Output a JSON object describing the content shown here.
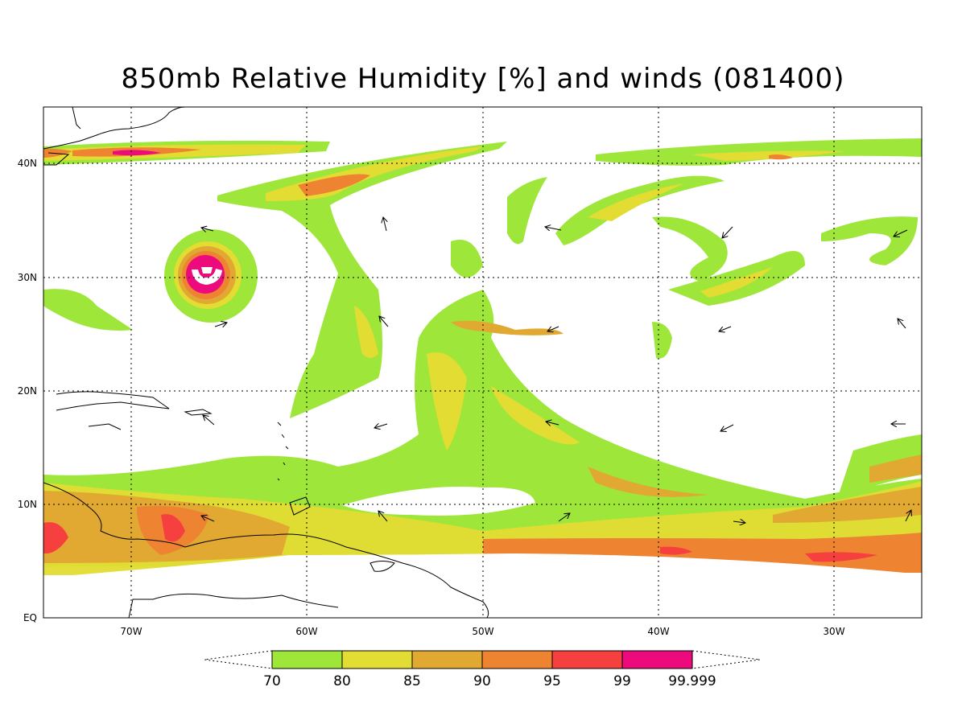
{
  "title": "850mb Relative Humidity [%] and winds (081400)",
  "map": {
    "lat_labels": [
      "40N",
      "30N",
      "20N",
      "10N",
      "EQ"
    ],
    "lon_labels": [
      "70W",
      "60W",
      "50W",
      "40W",
      "30W"
    ],
    "grid_lines": "dotted"
  },
  "colorbar": {
    "labels": [
      "70",
      "80",
      "85",
      "90",
      "95",
      "99",
      "99.999"
    ],
    "colors": [
      "#9ee63a",
      "#e3dc33",
      "#e1a932",
      "#ee8431",
      "#f64040",
      "#ec0a7c"
    ],
    "extends": "both"
  }
}
